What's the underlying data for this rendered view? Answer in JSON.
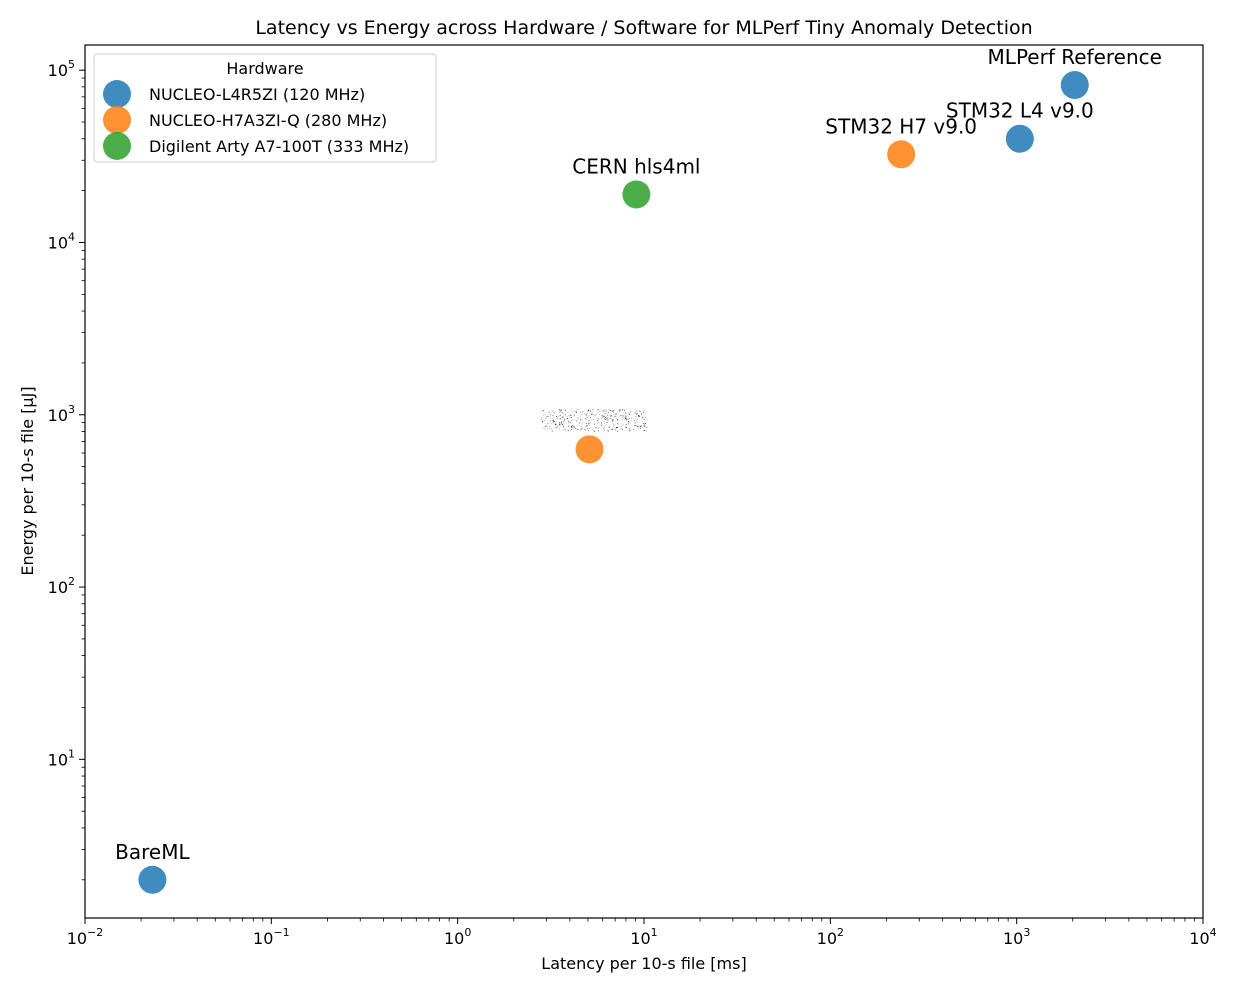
{
  "chart_data": {
    "type": "scatter",
    "title": "Latency vs Energy across Hardware / Software for MLPerf Tiny Anomaly Detection",
    "xlabel": "Latency per 10-s file [ms]",
    "ylabel": "Energy per 10-s file [µJ]",
    "xscale": "log",
    "yscale": "log",
    "xlim": [
      0.01,
      10000
    ],
    "ylim": [
      1.2,
      140000
    ],
    "grid": false,
    "x_ticks": [
      {
        "base": "10",
        "exp": "−2",
        "value": 0.01
      },
      {
        "base": "10",
        "exp": "−1",
        "value": 0.1
      },
      {
        "base": "10",
        "exp": "0",
        "value": 1
      },
      {
        "base": "10",
        "exp": "1",
        "value": 10
      },
      {
        "base": "10",
        "exp": "2",
        "value": 100
      },
      {
        "base": "10",
        "exp": "3",
        "value": 1000
      },
      {
        "base": "10",
        "exp": "4",
        "value": 10000
      }
    ],
    "y_ticks": [
      {
        "base": "10",
        "exp": "1",
        "value": 10
      },
      {
        "base": "10",
        "exp": "2",
        "value": 100
      },
      {
        "base": "10",
        "exp": "3",
        "value": 1000
      },
      {
        "base": "10",
        "exp": "4",
        "value": 10000
      },
      {
        "base": "10",
        "exp": "5",
        "value": 100000
      }
    ],
    "legend": {
      "title": "Hardware",
      "placement": "top-left",
      "entries": [
        {
          "label": "NUCLEO-L4R5ZI (120 MHz)",
          "color": "#1f77b4"
        },
        {
          "label": "NUCLEO-H7A3ZI-Q (280 MHz)",
          "color": "#ff7f0e"
        },
        {
          "label": "Digilent Arty A7-100T (333 MHz)",
          "color": "#2ca02c"
        }
      ]
    },
    "series": [
      {
        "name": "NUCLEO-L4R5ZI (120 MHz)",
        "color": "#1f77b4",
        "points": [
          {
            "x": 0.023,
            "y": 2.0,
            "label": "BareML"
          },
          {
            "x": 1040,
            "y": 40000,
            "label": "STM32 L4 v9.0"
          },
          {
            "x": 2050,
            "y": 82000,
            "label": "MLPerf Reference"
          }
        ]
      },
      {
        "name": "NUCLEO-H7A3ZI-Q (280 MHz)",
        "color": "#ff7f0e",
        "points": [
          {
            "x": 5.1,
            "y": 630,
            "label": ""
          },
          {
            "x": 240,
            "y": 32500,
            "label": "STM32 H7 v9.0"
          }
        ]
      },
      {
        "name": "Digilent Arty A7-100T (333 MHz)",
        "color": "#2ca02c",
        "points": [
          {
            "x": 9.1,
            "y": 19000,
            "label": "CERN hls4ml"
          }
        ]
      }
    ]
  }
}
